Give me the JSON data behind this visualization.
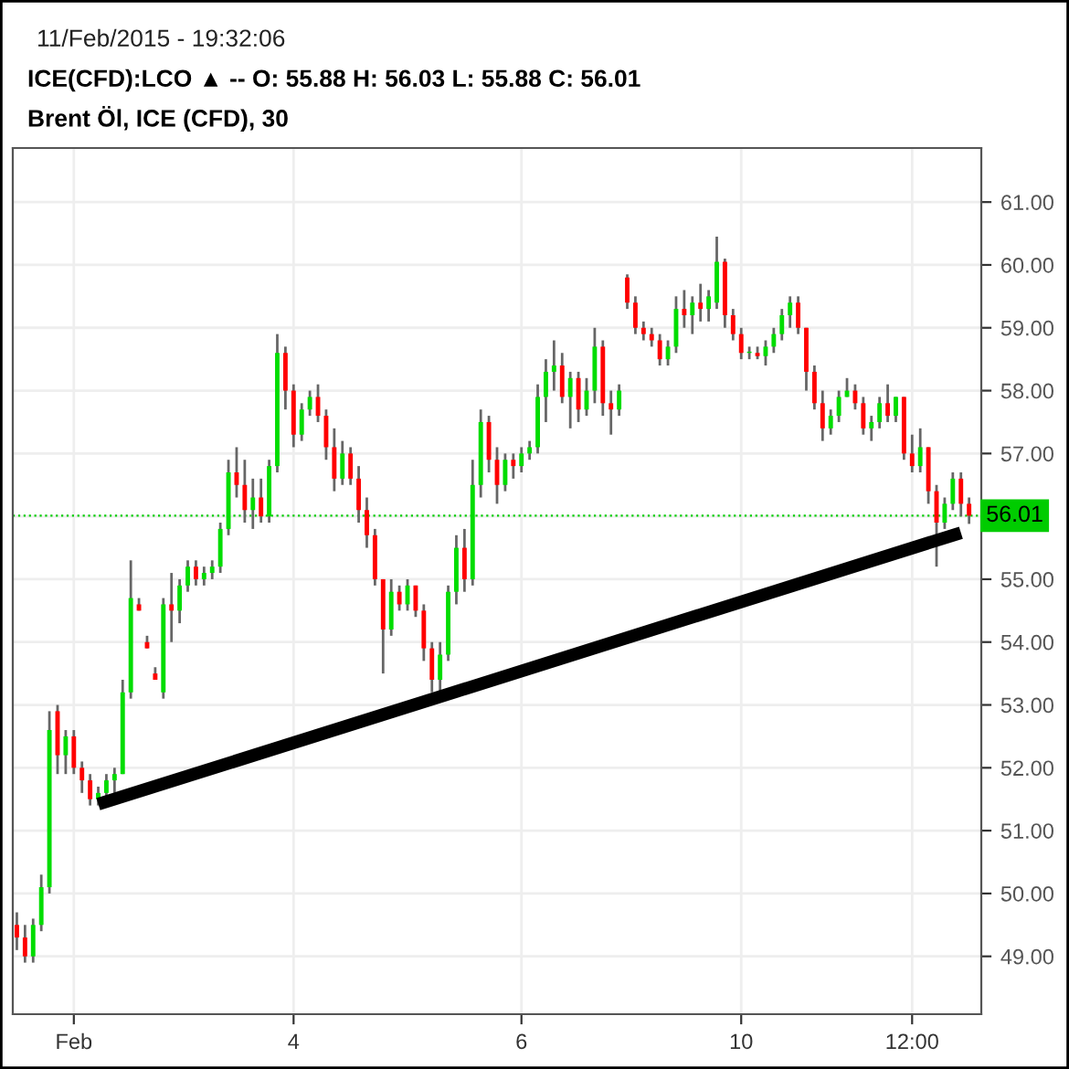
{
  "chart_data": {
    "type": "candlestick",
    "title": "ICE(CFD):LCO ▲ -- O: 55.88 H: 56.03 L: 55.88 C: 56.01",
    "subtitle": "Brent Öl, ICE (CFD), 30",
    "annotations": [
      "11/Feb/2015 - 19:32:06"
    ],
    "categories": [
      null,
      null,
      null,
      null,
      null,
      null,
      null,
      "Feb",
      null,
      null,
      null,
      null,
      null,
      null,
      null,
      null,
      null,
      null,
      null,
      null,
      null,
      null,
      null,
      null,
      null,
      null,
      null,
      null,
      null,
      null,
      null,
      null,
      null,
      null,
      "4",
      null,
      null,
      null,
      null,
      null,
      null,
      null,
      null,
      null,
      null,
      null,
      null,
      null,
      null,
      null,
      null,
      null,
      null,
      null,
      null,
      null,
      null,
      null,
      null,
      null,
      null,
      null,
      "6",
      null,
      null,
      null,
      null,
      null,
      null,
      null,
      null,
      null,
      null,
      null,
      null,
      null,
      null,
      null,
      null,
      null,
      null,
      null,
      null,
      null,
      null,
      null,
      null,
      null,
      null,
      "10",
      null,
      null,
      null,
      null,
      null,
      null,
      null,
      null,
      null,
      null,
      null,
      null,
      null,
      null,
      null,
      null,
      null,
      null,
      null,
      null,
      "12:00",
      null,
      null,
      null,
      null,
      null,
      null,
      null
    ],
    "series": [
      {
        "type": "candlestick",
        "ohlc": [
          [
            49.5,
            49.7,
            49.1,
            49.3
          ],
          [
            49.3,
            49.5,
            48.9,
            49.0
          ],
          [
            49.0,
            49.6,
            48.9,
            49.5
          ],
          [
            49.5,
            50.3,
            49.4,
            50.1
          ],
          [
            50.1,
            52.9,
            50.0,
            52.6
          ],
          [
            52.9,
            53.0,
            51.9,
            52.2
          ],
          [
            52.2,
            52.6,
            51.9,
            52.5
          ],
          [
            52.5,
            52.6,
            51.9,
            52.0
          ],
          [
            52.0,
            52.1,
            51.6,
            51.8
          ],
          [
            51.8,
            51.9,
            51.4,
            51.5
          ],
          [
            51.5,
            51.7,
            51.4,
            51.6
          ],
          [
            51.6,
            51.9,
            51.5,
            51.8
          ],
          [
            51.8,
            52.0,
            51.6,
            51.9
          ],
          [
            51.9,
            53.4,
            51.9,
            53.2
          ],
          [
            53.2,
            55.3,
            53.1,
            54.7
          ],
          [
            54.6,
            54.7,
            54.5,
            54.5
          ],
          [
            54.0,
            54.1,
            53.9,
            53.9
          ],
          [
            53.5,
            53.6,
            53.4,
            53.4
          ],
          [
            53.2,
            54.7,
            53.1,
            54.6
          ],
          [
            54.6,
            55.1,
            54.0,
            54.5
          ],
          [
            54.5,
            55.0,
            54.3,
            54.9
          ],
          [
            54.9,
            55.3,
            54.8,
            55.2
          ],
          [
            55.2,
            55.3,
            54.9,
            55.0
          ],
          [
            55.0,
            55.2,
            54.9,
            55.1
          ],
          [
            55.1,
            55.3,
            55.0,
            55.2
          ],
          [
            55.2,
            55.9,
            55.1,
            55.8
          ],
          [
            55.8,
            56.9,
            55.7,
            56.7
          ],
          [
            56.7,
            57.1,
            56.3,
            56.5
          ],
          [
            56.5,
            56.9,
            55.9,
            56.1
          ],
          [
            56.1,
            56.6,
            55.8,
            56.3
          ],
          [
            56.3,
            56.6,
            55.9,
            56.0
          ],
          [
            56.0,
            56.9,
            55.9,
            56.8
          ],
          [
            56.8,
            58.9,
            56.7,
            58.6
          ],
          [
            58.6,
            58.7,
            57.7,
            58.0
          ],
          [
            58.0,
            58.1,
            57.1,
            57.3
          ],
          [
            57.3,
            57.8,
            57.2,
            57.7
          ],
          [
            57.7,
            58.0,
            57.6,
            57.9
          ],
          [
            57.9,
            58.1,
            57.5,
            57.6
          ],
          [
            57.6,
            57.7,
            56.9,
            57.1
          ],
          [
            57.1,
            57.4,
            56.4,
            56.6
          ],
          [
            56.6,
            57.2,
            56.5,
            57.0
          ],
          [
            57.0,
            57.1,
            56.5,
            56.6
          ],
          [
            56.6,
            56.8,
            55.9,
            56.1
          ],
          [
            56.1,
            56.3,
            55.5,
            55.7
          ],
          [
            55.7,
            55.8,
            54.9,
            55.0
          ],
          [
            55.0,
            55.0,
            53.5,
            54.2
          ],
          [
            54.2,
            55.0,
            54.1,
            54.8
          ],
          [
            54.8,
            54.9,
            54.5,
            54.6
          ],
          [
            54.6,
            55.0,
            54.5,
            54.9
          ],
          [
            54.9,
            54.9,
            54.4,
            54.5
          ],
          [
            54.5,
            54.6,
            53.7,
            53.9
          ],
          [
            53.9,
            54.0,
            53.2,
            53.4
          ],
          [
            53.4,
            54.0,
            53.2,
            53.8
          ],
          [
            53.8,
            54.9,
            53.7,
            54.8
          ],
          [
            54.8,
            55.7,
            54.6,
            55.5
          ],
          [
            55.5,
            55.8,
            54.8,
            55.0
          ],
          [
            55.0,
            56.9,
            54.9,
            56.5
          ],
          [
            56.5,
            57.7,
            56.3,
            57.5
          ],
          [
            57.5,
            57.6,
            56.7,
            56.9
          ],
          [
            56.9,
            57.1,
            56.2,
            56.5
          ],
          [
            56.5,
            57.0,
            56.4,
            56.9
          ],
          [
            56.9,
            57.0,
            56.6,
            56.8
          ],
          [
            56.8,
            57.1,
            56.7,
            57.0
          ],
          [
            57.0,
            57.2,
            56.9,
            57.1
          ],
          [
            57.1,
            58.1,
            57.0,
            57.9
          ],
          [
            57.9,
            58.5,
            57.5,
            58.3
          ],
          [
            58.3,
            58.8,
            58.0,
            58.4
          ],
          [
            58.4,
            58.6,
            57.8,
            57.9
          ],
          [
            57.9,
            58.3,
            57.4,
            58.2
          ],
          [
            58.2,
            58.3,
            57.5,
            57.7
          ],
          [
            57.7,
            58.2,
            57.6,
            58.0
          ],
          [
            58.0,
            59.0,
            57.8,
            58.7
          ],
          [
            58.7,
            58.8,
            57.6,
            57.8
          ],
          [
            57.8,
            58.0,
            57.3,
            57.7
          ],
          [
            57.7,
            58.1,
            57.6,
            58.0
          ],
          [
            59.8,
            59.85,
            59.3,
            59.4
          ],
          [
            59.4,
            59.5,
            58.9,
            59.0
          ],
          [
            59.0,
            59.1,
            58.8,
            58.9
          ],
          [
            58.9,
            59.0,
            58.7,
            58.8
          ],
          [
            58.8,
            58.9,
            58.4,
            58.5
          ],
          [
            58.5,
            58.8,
            58.4,
            58.7
          ],
          [
            58.7,
            59.5,
            58.6,
            59.3
          ],
          [
            59.3,
            59.6,
            59.0,
            59.2
          ],
          [
            59.2,
            59.5,
            58.9,
            59.4
          ],
          [
            59.4,
            59.7,
            59.1,
            59.3
          ],
          [
            59.3,
            59.6,
            59.1,
            59.5
          ],
          [
            59.4,
            60.45,
            59.3,
            60.05
          ],
          [
            60.05,
            60.1,
            59.0,
            59.2
          ],
          [
            59.2,
            59.3,
            58.8,
            58.9
          ],
          [
            58.9,
            59.0,
            58.5,
            58.6
          ],
          [
            58.6,
            58.7,
            58.5,
            58.6
          ],
          [
            58.6,
            58.7,
            58.5,
            58.55
          ],
          [
            58.55,
            58.8,
            58.4,
            58.7
          ],
          [
            58.7,
            59.0,
            58.6,
            58.9
          ],
          [
            58.9,
            59.3,
            58.8,
            59.2
          ],
          [
            59.2,
            59.5,
            59.0,
            59.4
          ],
          [
            59.4,
            59.5,
            58.9,
            59.0
          ],
          [
            59.0,
            59.0,
            58.0,
            58.3
          ],
          [
            58.3,
            58.4,
            57.7,
            57.8
          ],
          [
            57.8,
            58.0,
            57.2,
            57.4
          ],
          [
            57.4,
            57.7,
            57.3,
            57.6
          ],
          [
            57.6,
            58.0,
            57.5,
            57.9
          ],
          [
            57.9,
            58.2,
            57.9,
            58.0
          ],
          [
            58.0,
            58.1,
            57.7,
            57.8
          ],
          [
            57.8,
            57.9,
            57.3,
            57.4
          ],
          [
            57.4,
            57.6,
            57.2,
            57.5
          ],
          [
            57.5,
            57.9,
            57.4,
            57.8
          ],
          [
            57.8,
            58.1,
            57.5,
            57.6
          ],
          [
            57.6,
            57.9,
            57.5,
            57.9
          ],
          [
            57.9,
            57.9,
            56.9,
            57.0
          ],
          [
            57.0,
            57.3,
            56.7,
            56.8
          ],
          [
            56.8,
            57.4,
            56.7,
            57.1
          ],
          [
            57.1,
            57.1,
            56.2,
            56.4
          ],
          [
            56.4,
            56.5,
            55.2,
            55.9
          ],
          [
            55.9,
            56.3,
            55.8,
            56.2
          ],
          [
            56.2,
            56.7,
            56.1,
            56.6
          ],
          [
            56.6,
            56.7,
            56.0,
            56.2
          ],
          [
            56.2,
            56.3,
            55.88,
            56.01
          ]
        ]
      },
      {
        "type": "line",
        "values": [
          null,
          null,
          null,
          null,
          null,
          null,
          null,
          null,
          null,
          null,
          51.42,
          null,
          null,
          null,
          null,
          null,
          null,
          null,
          null,
          null,
          null,
          null,
          null,
          null,
          null,
          null,
          null,
          null,
          null,
          null,
          null,
          null,
          null,
          null,
          null,
          null,
          null,
          null,
          null,
          null,
          null,
          null,
          null,
          null,
          null,
          null,
          null,
          null,
          null,
          null,
          null,
          null,
          null,
          null,
          null,
          null,
          null,
          null,
          null,
          null,
          null,
          null,
          null,
          null,
          null,
          null,
          null,
          null,
          null,
          null,
          null,
          null,
          null,
          null,
          null,
          null,
          null,
          null,
          null,
          null,
          null,
          null,
          null,
          null,
          null,
          null,
          null,
          null,
          null,
          null,
          null,
          null,
          null,
          null,
          null,
          null,
          null,
          null,
          null,
          null,
          null,
          null,
          null,
          null,
          null,
          null,
          null,
          null,
          null,
          null,
          null,
          null,
          null,
          null,
          null,
          null,
          55.74,
          null
        ],
        "color": "#000000"
      }
    ],
    "ref_lines": [
      {
        "axis": "y",
        "value": 56.01,
        "label": "56.01",
        "color": "#00cc00",
        "line_style": "dotted"
      }
    ],
    "ylim": [
      48.08,
      61.86
    ],
    "yticks": [
      {
        "value": 49,
        "label": "49.00"
      },
      {
        "value": 50,
        "label": "50.00"
      },
      {
        "value": 51,
        "label": "51.00"
      },
      {
        "value": 52,
        "label": "52.00"
      },
      {
        "value": 53,
        "label": "53.00"
      },
      {
        "value": 54,
        "label": "54.00"
      },
      {
        "value": 55,
        "label": "55.00"
      },
      {
        "value": 56,
        "label": null
      },
      {
        "value": 57,
        "label": "57.00"
      },
      {
        "value": 58,
        "label": "58.00"
      },
      {
        "value": 59,
        "label": "59.00"
      },
      {
        "value": 60,
        "label": "60.00"
      },
      {
        "value": 61,
        "label": "61.00"
      }
    ],
    "grid": true
  }
}
